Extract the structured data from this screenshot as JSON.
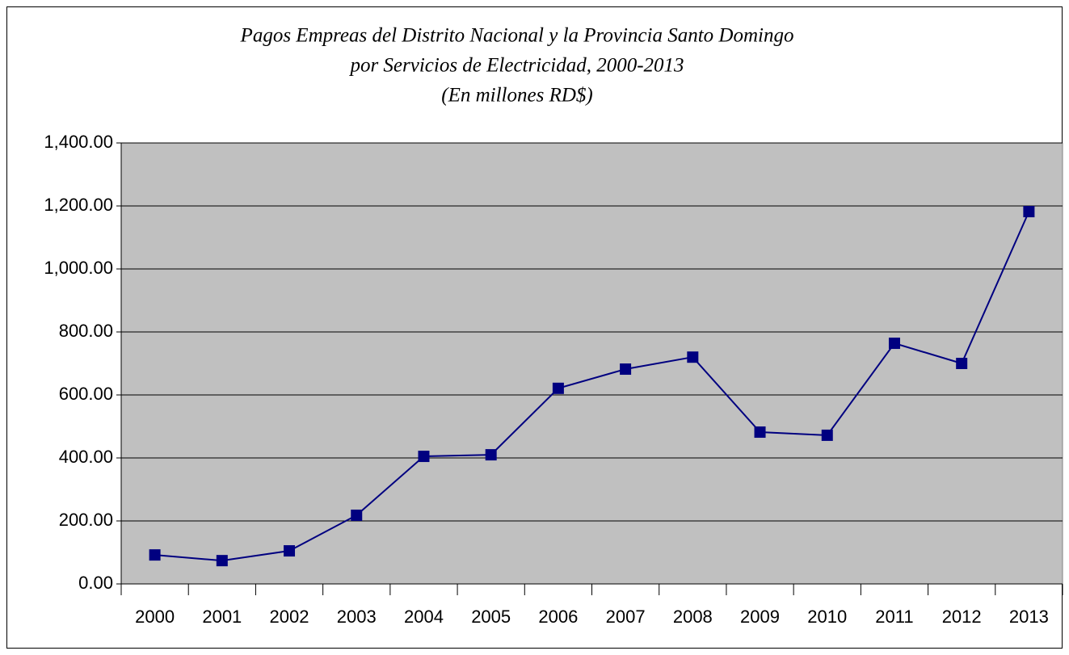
{
  "chart_data": {
    "type": "line",
    "title": [
      "Pagos Empreas del Distrito Nacional y la Provincia Santo Domingo",
      "por Servicios de Electricidad, 2000-2013",
      "(En millones RD$)"
    ],
    "categories": [
      "2000",
      "2001",
      "2002",
      "2003",
      "2004",
      "2005",
      "2006",
      "2007",
      "2008",
      "2009",
      "2010",
      "2011",
      "2012",
      "2013"
    ],
    "series": [
      {
        "color": "#000080",
        "values": [
          92,
          74,
          105,
          218,
          405,
          410,
          621,
          682,
          720,
          482,
          472,
          764,
          700,
          1182
        ]
      }
    ],
    "ylim": [
      0,
      1400
    ],
    "yticks": [
      {
        "value": 0,
        "label": "0.00"
      },
      {
        "value": 200,
        "label": "200.00"
      },
      {
        "value": 400,
        "label": "400.00"
      },
      {
        "value": 600,
        "label": "600.00"
      },
      {
        "value": 800,
        "label": "800.00"
      },
      {
        "value": 1000,
        "label": "1,000.00"
      },
      {
        "value": 1200,
        "label": "1,200.00"
      },
      {
        "value": 1400,
        "label": "1,400.00"
      }
    ],
    "grid": true,
    "plot_background": "#c0c0c0"
  }
}
